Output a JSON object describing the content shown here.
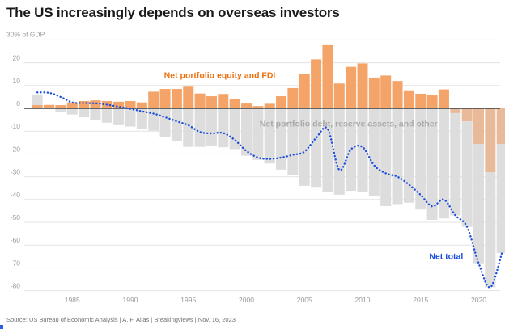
{
  "header": {
    "title": "The US increasingly depends on overseas investors"
  },
  "source_line": "Source: US Bureau of Economic Analysis | A. F. Alias | Breakingviews | Nov. 16, 2023",
  "colors": {
    "background": "#ffffff",
    "title_text": "#191919",
    "axis_text": "#999999",
    "gridline": "#e3e3e3",
    "zero_line": "#3c3c3c",
    "bar_orange_positive": "#f4a469",
    "bar_orange_negative": "#e9ba99",
    "bar_gray": "#dddddd",
    "net_line_blue": "#1b4ede",
    "label_orange": "#ed7010",
    "label_gray": "#aaaaaa",
    "source_text": "#6f6f6f",
    "corner_mark_blue": "#2e5be6"
  },
  "chart_data": {
    "type": "bar",
    "subtype": "stacked-bars-with-dotted-line-overlay",
    "title": "The US increasingly depends on overseas investors",
    "unit_top_label": "30% of GDP",
    "xlabel": "",
    "ylabel": "% of GDP",
    "ylim": [
      -84,
      32
    ],
    "grid": true,
    "legend_position": "inline-annotations",
    "yticks": [
      20,
      10,
      0,
      -10,
      -20,
      -30,
      -40,
      -50,
      -60,
      -70,
      -80
    ],
    "xticks": [
      1985,
      1990,
      1995,
      2000,
      2005,
      2010,
      2015,
      2020
    ],
    "years": [
      1982,
      1983,
      1984,
      1985,
      1986,
      1987,
      1988,
      1989,
      1990,
      1991,
      1992,
      1993,
      1994,
      1995,
      1996,
      1997,
      1998,
      1999,
      2000,
      2001,
      2002,
      2003,
      2004,
      2005,
      2006,
      2007,
      2008,
      2009,
      2010,
      2011,
      2012,
      2013,
      2014,
      2015,
      2016,
      2017,
      2018,
      2019,
      2020,
      2021,
      2022
    ],
    "series": [
      {
        "name": "Net portfolio equity and FDI",
        "kind": "bar",
        "stack": 1,
        "values": [
          1.4,
          1.5,
          1.4,
          2.6,
          3.2,
          3.5,
          3.2,
          2.9,
          3.2,
          2.6,
          7.3,
          8.5,
          8.5,
          9.5,
          6.5,
          5.3,
          6.3,
          4.0,
          2.1,
          1.0,
          2.0,
          5.3,
          8.9,
          15.0,
          21.5,
          27.7,
          10.9,
          18.2,
          19.7,
          13.5,
          14.4,
          12.0,
          7.9,
          6.4,
          5.9,
          8.3,
          -2.1,
          -5.7,
          -15.7,
          -28.1,
          -15.7
        ]
      },
      {
        "name": "Net portfolio debt, reserve assets, and other",
        "kind": "bar",
        "stack": 2,
        "values": [
          4.7,
          0.0,
          -1.5,
          -2.7,
          -3.9,
          -5.1,
          -6.3,
          -7.4,
          -8.0,
          -9.2,
          -9.8,
          -12.4,
          -14.2,
          -16.9,
          -16.9,
          -16.3,
          -17.1,
          -17.9,
          -20.8,
          -22.6,
          -24.2,
          -26.9,
          -29.3,
          -34.0,
          -34.5,
          -36.7,
          -37.9,
          -36.2,
          -36.7,
          -38.5,
          -42.9,
          -42.0,
          -41.4,
          -44.4,
          -48.9,
          -48.3,
          -44.9,
          -46.3,
          -52.3,
          -50.4,
          -47.8
        ]
      },
      {
        "name": "Net total",
        "kind": "dotted_line",
        "values": [
          7.0,
          6.8,
          5.0,
          2.6,
          2.3,
          2.2,
          1.6,
          0.7,
          -0.2,
          -1.3,
          -2.3,
          -3.9,
          -5.7,
          -7.4,
          -10.4,
          -11.0,
          -10.8,
          -13.9,
          -18.7,
          -21.6,
          -22.2,
          -21.6,
          -20.4,
          -19.0,
          -13.0,
          -9.0,
          -27.0,
          -18.0,
          -17.0,
          -25.0,
          -28.5,
          -30.0,
          -33.5,
          -38.0,
          -43.0,
          -40.0,
          -47.0,
          -52.0,
          -68.0,
          -78.5,
          -63.5
        ]
      }
    ],
    "annotations": [
      {
        "id": "equity",
        "label": "Net portfolio equity and FDI",
        "year": 1997.7,
        "value": 14.5
      },
      {
        "id": "debt",
        "label": "Net portfolio debt, reserve assets, and other",
        "year": 2008.8,
        "value": -6.8
      },
      {
        "id": "net",
        "label": "Net total",
        "year": 2017.2,
        "value": -64.9
      }
    ]
  }
}
